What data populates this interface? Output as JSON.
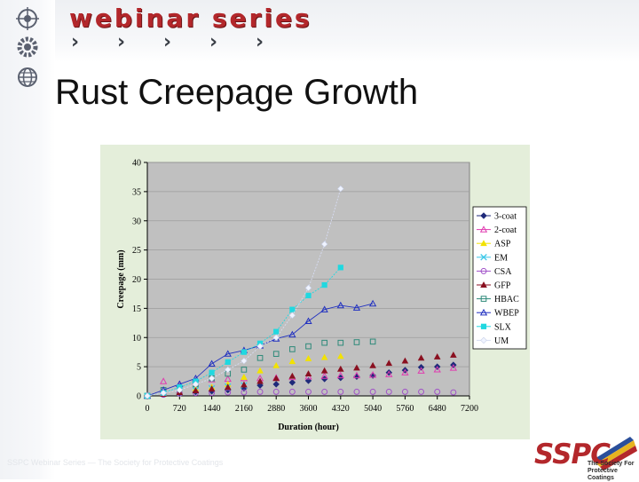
{
  "header": {
    "brand": "webinar series",
    "chevron_glyph": "›",
    "icons": [
      "target-icon",
      "gear-icon",
      "globe-icon"
    ]
  },
  "slide": {
    "title": "Rust Creepage Growth"
  },
  "footer": {
    "note": "SSPC Webinar Series — The Society for Protective Coatings"
  },
  "logo": {
    "text": "SSPC",
    "tagline": "The Society For Protective Coatings"
  },
  "colors": {
    "brand_red": "#b3272b",
    "plot_bg": "#c0c0c0",
    "panel_bg": "#e4eeda"
  },
  "chart_data": {
    "type": "scatter",
    "title": "",
    "xlabel": "Duration (hour)",
    "ylabel": "Creepage (mm)",
    "xlim": [
      0,
      7200
    ],
    "ylim": [
      0,
      40
    ],
    "xticks": [
      0,
      720,
      1440,
      2160,
      2880,
      3600,
      4320,
      5040,
      5760,
      6480,
      7200
    ],
    "yticks": [
      0,
      5,
      10,
      15,
      20,
      25,
      30,
      35,
      40
    ],
    "grid": "horizontal",
    "legend_position": "right",
    "series": [
      {
        "name": "3-coat",
        "color": "#1f2a7a",
        "marker": "diamond-filled",
        "line": false,
        "x": [
          0,
          360,
          720,
          1080,
          1440,
          1800,
          2160,
          2520,
          2880,
          3240,
          3600,
          3960,
          4320,
          4680,
          5040,
          5400,
          5760,
          6120,
          6480,
          6840
        ],
        "y": [
          0,
          0.3,
          0.5,
          0.7,
          0.8,
          1.0,
          1.3,
          1.8,
          2.0,
          2.3,
          2.6,
          2.9,
          3.1,
          3.3,
          3.5,
          4.0,
          4.4,
          4.9,
          5.0,
          5.3
        ]
      },
      {
        "name": "2-coat",
        "color": "#e03cb0",
        "marker": "triangle-open",
        "line": false,
        "x": [
          0,
          360,
          720,
          1080,
          1440,
          1800,
          2160,
          2520,
          2880,
          3240,
          3600,
          3960,
          4320,
          4680,
          5040,
          5400,
          5760,
          6120,
          6480,
          6840
        ],
        "y": [
          0,
          2.5,
          2.0,
          2.5,
          2.8,
          2.9,
          3.0,
          3.0,
          3.1,
          3.2,
          3.3,
          3.4,
          3.5,
          3.5,
          3.6,
          3.7,
          4.0,
          4.3,
          4.5,
          4.8
        ]
      },
      {
        "name": "ASP",
        "color": "#f2e200",
        "marker": "triangle-filled",
        "line": false,
        "x": [
          0,
          360,
          720,
          1080,
          1440,
          1800,
          2160,
          2520,
          2880,
          3240,
          3600,
          3960,
          4320
        ],
        "y": [
          0,
          0.4,
          0.8,
          1.2,
          1.5,
          2.0,
          3.2,
          4.3,
          5.2,
          5.9,
          6.4,
          6.6,
          6.8
        ]
      },
      {
        "name": "EM",
        "color": "#3cc8e8",
        "marker": "x",
        "line": false,
        "x": [
          0,
          360,
          720,
          1080,
          1440,
          1800,
          2160
        ],
        "y": [
          0,
          0.4,
          0.7,
          1.0,
          1.3,
          1.6,
          1.8
        ]
      },
      {
        "name": "CSA",
        "color": "#a050c8",
        "marker": "circle-open",
        "line": false,
        "x": [
          0,
          360,
          720,
          1080,
          1440,
          1800,
          2160,
          2520,
          2880,
          3240,
          3600,
          3960,
          4320,
          4680,
          5040,
          5400,
          5760,
          6120,
          6480,
          6840
        ],
        "y": [
          0,
          0.2,
          0.4,
          0.5,
          0.5,
          0.6,
          0.6,
          0.7,
          0.7,
          0.7,
          0.7,
          0.7,
          0.7,
          0.7,
          0.7,
          0.7,
          0.7,
          0.7,
          0.7,
          0.6
        ]
      },
      {
        "name": "GFP",
        "color": "#8a1020",
        "marker": "triangle-filled",
        "line": false,
        "x": [
          0,
          360,
          720,
          1080,
          1440,
          1800,
          2160,
          2520,
          2880,
          3240,
          3600,
          3960,
          4320,
          4680,
          5040,
          5400,
          5760,
          6120,
          6480,
          6840
        ],
        "y": [
          0,
          0.3,
          0.6,
          0.9,
          1.2,
          1.5,
          1.9,
          2.5,
          3.0,
          3.4,
          3.8,
          4.3,
          4.6,
          4.8,
          5.2,
          5.6,
          6.0,
          6.5,
          6.7,
          7.0
        ]
      },
      {
        "name": "HBAC",
        "color": "#2e8a7a",
        "marker": "square-open",
        "line": false,
        "x": [
          0,
          360,
          720,
          1080,
          1440,
          1800,
          2160,
          2520,
          2880,
          3240,
          3600,
          3960,
          4320,
          4680,
          5040
        ],
        "y": [
          0,
          1.0,
          1.3,
          2.0,
          3.0,
          3.8,
          4.5,
          6.5,
          7.2,
          8.0,
          8.5,
          9.1,
          9.1,
          9.2,
          9.3
        ]
      },
      {
        "name": "WBEP",
        "color": "#2030c0",
        "marker": "triangle-open",
        "line": true,
        "x": [
          0,
          360,
          720,
          1080,
          1440,
          1800,
          2160,
          2520,
          2880,
          3240,
          3600,
          3960,
          4320,
          4680,
          5040
        ],
        "y": [
          0,
          1.0,
          2.0,
          3.0,
          5.5,
          7.2,
          7.8,
          8.6,
          9.8,
          10.5,
          12.8,
          14.8,
          15.5,
          15.1,
          15.8
        ]
      },
      {
        "name": "SLX",
        "color": "#20d8e0",
        "marker": "square-filled",
        "line": true,
        "x": [
          0,
          360,
          720,
          1080,
          1440,
          1800,
          2160,
          2520,
          2880,
          3240,
          3600,
          3960,
          4320
        ],
        "y": [
          0,
          0.5,
          1.5,
          2.5,
          4.0,
          5.8,
          7.5,
          9.0,
          11.0,
          14.8,
          17.2,
          19.0,
          22.0
        ]
      },
      {
        "name": "UM",
        "color": "#f0f4ff",
        "marker": "diamond-filled",
        "line": true,
        "x": [
          0,
          360,
          720,
          1080,
          1440,
          1800,
          2160,
          2520,
          2880,
          3240,
          3600,
          3960,
          4320
        ],
        "y": [
          0,
          0.5,
          1.0,
          2.0,
          3.0,
          4.5,
          6.0,
          8.5,
          10.0,
          13.8,
          18.5,
          26.0,
          35.5
        ]
      }
    ]
  }
}
